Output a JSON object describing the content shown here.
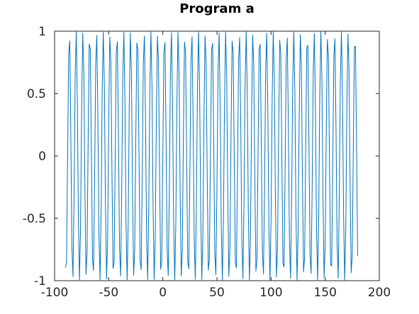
{
  "chart_data": {
    "type": "line",
    "title": "Program a",
    "xlabel": "",
    "ylabel": "",
    "xlim": [
      -100,
      200
    ],
    "ylim": [
      -1,
      1
    ],
    "xticks": [
      -100,
      -50,
      0,
      50,
      100,
      150,
      200
    ],
    "xtick_labels": [
      "-100",
      "-50",
      "0",
      "50",
      "100",
      "150",
      "200"
    ],
    "yticks": [
      -1,
      -0.5,
      0,
      0.5,
      1
    ],
    "ytick_labels": [
      "-1",
      "-0.5",
      "0",
      "0.5",
      "1"
    ],
    "grid": false,
    "legend": "none",
    "series": [
      {
        "color": "#0072bd",
        "function": "sin",
        "x_range": [
          -90,
          180
        ]
      }
    ]
  }
}
